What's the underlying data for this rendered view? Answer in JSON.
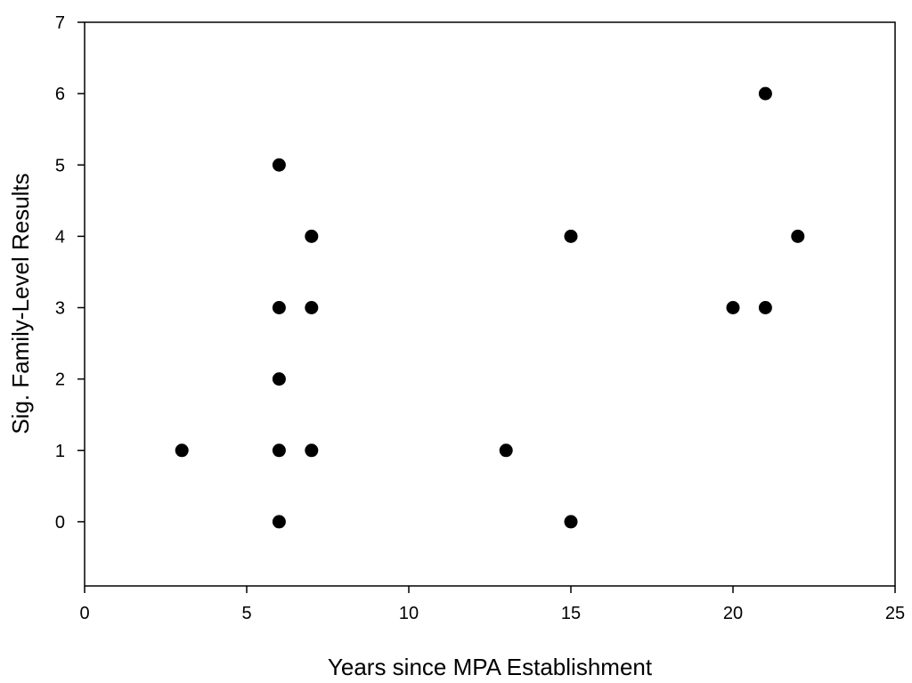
{
  "chart_data": {
    "type": "scatter",
    "title": "",
    "xlabel": "Years since MPA Establishment",
    "ylabel": "Sig. Family-Level Results",
    "xlim": [
      0,
      25
    ],
    "ylim": [
      -0.9,
      7
    ],
    "xticks": [
      0,
      5,
      10,
      15,
      20,
      25
    ],
    "yticks": [
      0,
      1,
      2,
      3,
      4,
      5,
      6,
      7
    ],
    "grid": false,
    "legend": "none",
    "marker_color": "#000000",
    "points": [
      {
        "x": 3,
        "y": 1
      },
      {
        "x": 6,
        "y": 0
      },
      {
        "x": 6,
        "y": 1
      },
      {
        "x": 6,
        "y": 2
      },
      {
        "x": 6,
        "y": 3
      },
      {
        "x": 6,
        "y": 5
      },
      {
        "x": 7,
        "y": 1
      },
      {
        "x": 7,
        "y": 3
      },
      {
        "x": 7,
        "y": 4
      },
      {
        "x": 13,
        "y": 1
      },
      {
        "x": 15,
        "y": 0
      },
      {
        "x": 15,
        "y": 4
      },
      {
        "x": 20,
        "y": 3
      },
      {
        "x": 21,
        "y": 3
      },
      {
        "x": 21,
        "y": 6
      },
      {
        "x": 22,
        "y": 4
      }
    ]
  }
}
